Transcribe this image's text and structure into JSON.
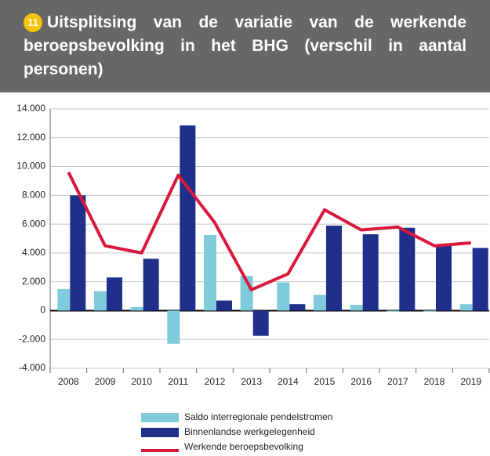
{
  "chart_data": {
    "type": "bar",
    "badge": "11",
    "title": "Uitsplitsing van de variatie van de werkende beroepsbevolking in het BHG (verschil in aantal personen)",
    "categories": [
      "2008",
      "2009",
      "2010",
      "2011",
      "2012",
      "2013",
      "2014",
      "2015",
      "2016",
      "2017",
      "2018",
      "2019"
    ],
    "series": [
      {
        "name": "Saldo interregionale pendelstromen",
        "color": "#7fcbdc",
        "type": "bar",
        "values": [
          1500,
          1350,
          250,
          -2300,
          5250,
          2400,
          1950,
          1100,
          400,
          -50,
          -50,
          450
        ]
      },
      {
        "name": "Binnenlandse werkgelegenheid",
        "color": "#1f2f8a",
        "type": "bar",
        "values": [
          8000,
          2300,
          3600,
          12850,
          700,
          -1750,
          450,
          5900,
          5300,
          5750,
          4500,
          4350
        ]
      },
      {
        "name": "Werkende beroepsbevolking",
        "color": "#d9183b",
        "type": "line",
        "values": [
          9600,
          4500,
          4000,
          9400,
          6100,
          1450,
          2550,
          7000,
          5600,
          5800,
          4500,
          4700
        ]
      }
    ],
    "ylim": [
      -4000,
      14000
    ],
    "yticks": [
      {
        "value": -4000,
        "label": "-4.000"
      },
      {
        "value": -2000,
        "label": "-2.000"
      },
      0,
      {
        "value": 2000,
        "label": "2.000"
      },
      {
        "value": 4000,
        "label": "4.000"
      },
      {
        "value": 6000,
        "label": "6.000"
      },
      {
        "value": 8000,
        "label": "8.000"
      },
      {
        "value": 10000,
        "label": "10.000"
      },
      {
        "value": 12000,
        "label": "12.000"
      },
      {
        "value": 14000,
        "label": "14.000"
      }
    ],
    "grid": true
  }
}
